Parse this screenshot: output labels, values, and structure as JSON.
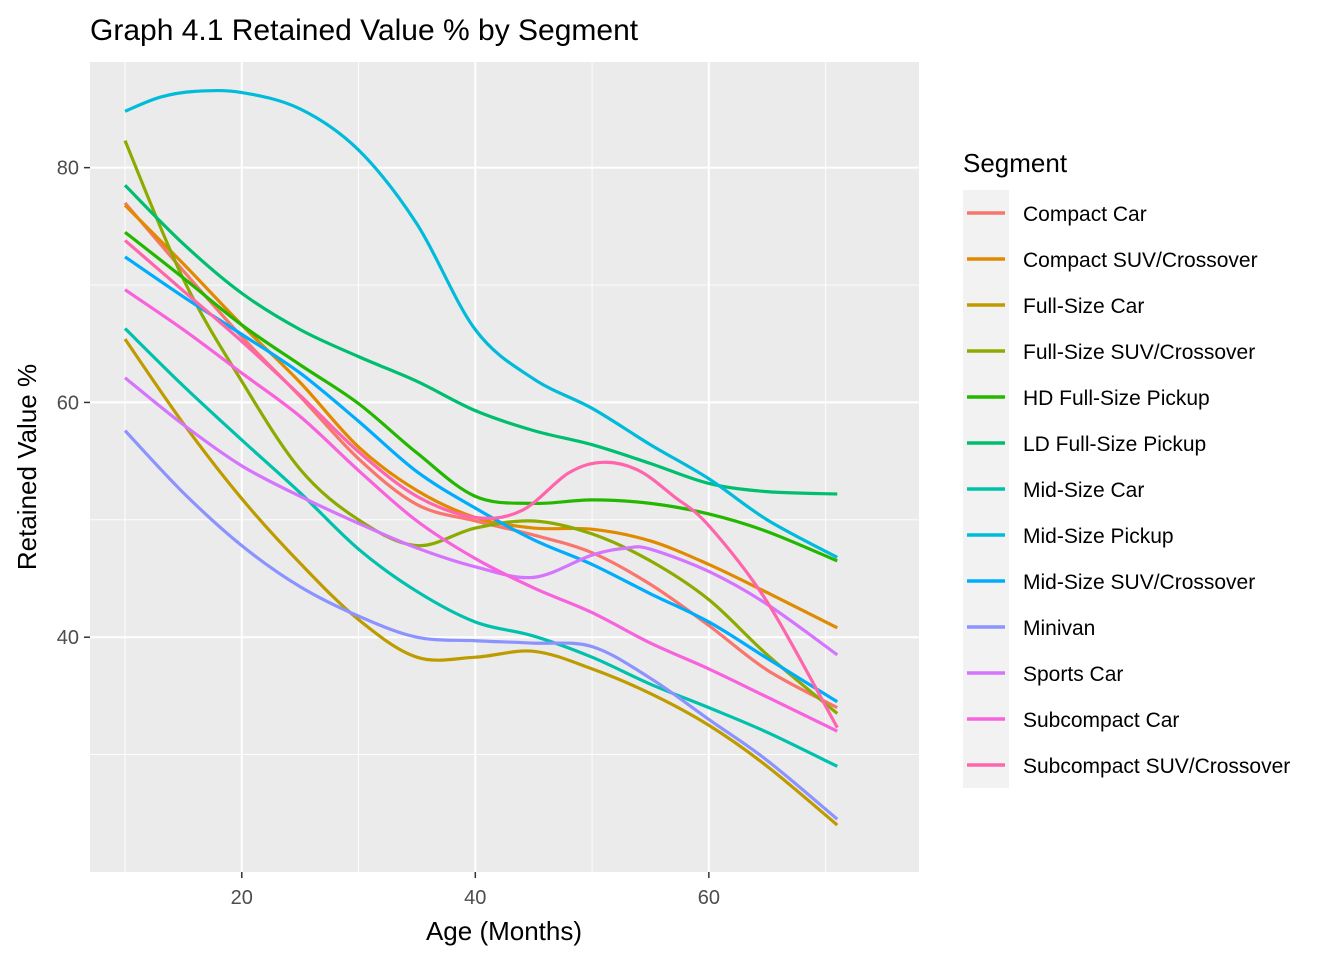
{
  "chart_data": {
    "type": "line",
    "title": "Graph 4.1 Retained Value % by Segment",
    "xlabel": "Age (Months)",
    "ylabel": "Retained Value %",
    "xlim": [
      7,
      78
    ],
    "ylim": [
      20,
      89
    ],
    "x_ticks": [
      20,
      40,
      60
    ],
    "y_ticks": [
      40,
      60,
      80
    ],
    "grid": true,
    "legend": {
      "title": "Segment",
      "position": "right"
    },
    "colors": {
      "panel_bg": "#ebebeb",
      "grid": "#ffffff",
      "tick": "#333333"
    },
    "series": [
      {
        "name": "Compact Car",
        "color": "#F8766D",
        "x": [
          10,
          15,
          20,
          25,
          30,
          35,
          40,
          45,
          50,
          55,
          60,
          65,
          71
        ],
        "y": [
          77,
          71.2,
          65.6,
          60.5,
          55.2,
          51.3,
          49.9,
          48.7,
          47.2,
          44.5,
          41,
          37.2,
          34
        ]
      },
      {
        "name": "Compact SUV/Crossover",
        "color": "#E18A00",
        "x": [
          10,
          15,
          20,
          25,
          30,
          35,
          40,
          45,
          50,
          55,
          60,
          65,
          71
        ],
        "y": [
          76.8,
          71.8,
          66.6,
          61.7,
          56.2,
          52.5,
          50.2,
          49.3,
          49.2,
          48.2,
          46.2,
          43.8,
          40.8
        ]
      },
      {
        "name": "Full-Size Car",
        "color": "#BE9C00",
        "x": [
          10,
          15,
          20,
          25,
          30,
          35,
          40,
          45,
          50,
          55,
          60,
          65,
          71
        ],
        "y": [
          65.4,
          58.2,
          51.8,
          46.3,
          41.5,
          38.3,
          38.3,
          38.8,
          37.3,
          35.2,
          32.5,
          29,
          24
        ]
      },
      {
        "name": "Full-Size SUV/Crossover",
        "color": "#8CAB00",
        "x": [
          10,
          15,
          20,
          25,
          30,
          35,
          40,
          45,
          50,
          55,
          60,
          65,
          71
        ],
        "y": [
          82.3,
          70.5,
          61.8,
          54.3,
          50,
          47.8,
          49.3,
          49.9,
          48.8,
          46.5,
          43.2,
          38.5,
          33.5
        ]
      },
      {
        "name": "HD Full-Size Pickup",
        "color": "#24B700",
        "x": [
          10,
          15,
          20,
          25,
          30,
          35,
          40,
          45,
          50,
          55,
          60,
          65,
          71
        ],
        "y": [
          74.5,
          70.6,
          66.6,
          63.2,
          59.9,
          55.7,
          52,
          51.4,
          51.7,
          51.4,
          50.5,
          49,
          46.5
        ]
      },
      {
        "name": "LD Full-Size Pickup",
        "color": "#00BE70",
        "x": [
          10,
          15,
          20,
          25,
          30,
          35,
          40,
          45,
          50,
          55,
          60,
          65,
          71
        ],
        "y": [
          78.5,
          73.5,
          69.3,
          66.2,
          63.9,
          61.8,
          59.3,
          57.6,
          56.4,
          54.8,
          53.1,
          52.4,
          52.2
        ]
      },
      {
        "name": "Mid-Size Car",
        "color": "#00C1AB",
        "x": [
          10,
          15,
          20,
          25,
          30,
          35,
          40,
          45,
          50,
          55,
          60,
          65,
          71
        ],
        "y": [
          66.3,
          61.4,
          56.8,
          52.3,
          47.5,
          43.9,
          41.3,
          40.1,
          38.3,
          36,
          34,
          31.9,
          29
        ]
      },
      {
        "name": "Mid-Size Pickup",
        "color": "#00BBDA",
        "x": [
          10,
          13,
          16,
          20,
          25,
          30,
          35,
          40,
          45,
          50,
          55,
          60,
          65,
          71
        ],
        "y": [
          84.8,
          86,
          86.5,
          86.4,
          85,
          81.5,
          75.2,
          66.2,
          62,
          59.5,
          56.4,
          53.5,
          50,
          46.8
        ]
      },
      {
        "name": "Mid-Size SUV/Crossover",
        "color": "#00ACFC",
        "x": [
          10,
          15,
          20,
          25,
          30,
          35,
          40,
          45,
          50,
          55,
          60,
          65,
          71
        ],
        "y": [
          72.4,
          69,
          65.8,
          62.5,
          58.4,
          54.1,
          51,
          48.3,
          46.2,
          43.7,
          41.3,
          38.2,
          34.5
        ]
      },
      {
        "name": "Minivan",
        "color": "#8B93FF",
        "x": [
          10,
          15,
          20,
          25,
          30,
          35,
          40,
          45,
          50,
          55,
          60,
          65,
          71
        ],
        "y": [
          57.6,
          52.3,
          47.8,
          44.3,
          41.8,
          40,
          39.7,
          39.5,
          39.2,
          36.5,
          33,
          29.5,
          24.5
        ]
      },
      {
        "name": "Sports Car",
        "color": "#D575FE",
        "x": [
          10,
          15,
          20,
          25,
          30,
          35,
          40,
          45,
          50,
          53,
          55,
          60,
          65,
          71
        ],
        "y": [
          62.1,
          58.1,
          54.6,
          52,
          49.7,
          47.6,
          46,
          45.1,
          47,
          47.6,
          47.5,
          45.6,
          42.8,
          38.5
        ]
      },
      {
        "name": "Subcompact Car",
        "color": "#F962DD",
        "x": [
          10,
          15,
          20,
          25,
          30,
          35,
          40,
          45,
          50,
          55,
          60,
          65,
          71
        ],
        "y": [
          69.6,
          66.2,
          62.5,
          58.8,
          54.2,
          49.9,
          46.7,
          44.2,
          42.1,
          39.5,
          37.3,
          34.9,
          32
        ]
      },
      {
        "name": "Subcompact SUV/Crossover",
        "color": "#FF65AC",
        "x": [
          10,
          15,
          20,
          25,
          30,
          35,
          40,
          44,
          48,
          51,
          54,
          57,
          60,
          65,
          71
        ],
        "y": [
          73.8,
          69.5,
          65.2,
          60.6,
          55.8,
          52,
          50.2,
          50.8,
          54,
          54.9,
          54.2,
          52,
          49.5,
          43,
          32.3
        ]
      }
    ]
  }
}
